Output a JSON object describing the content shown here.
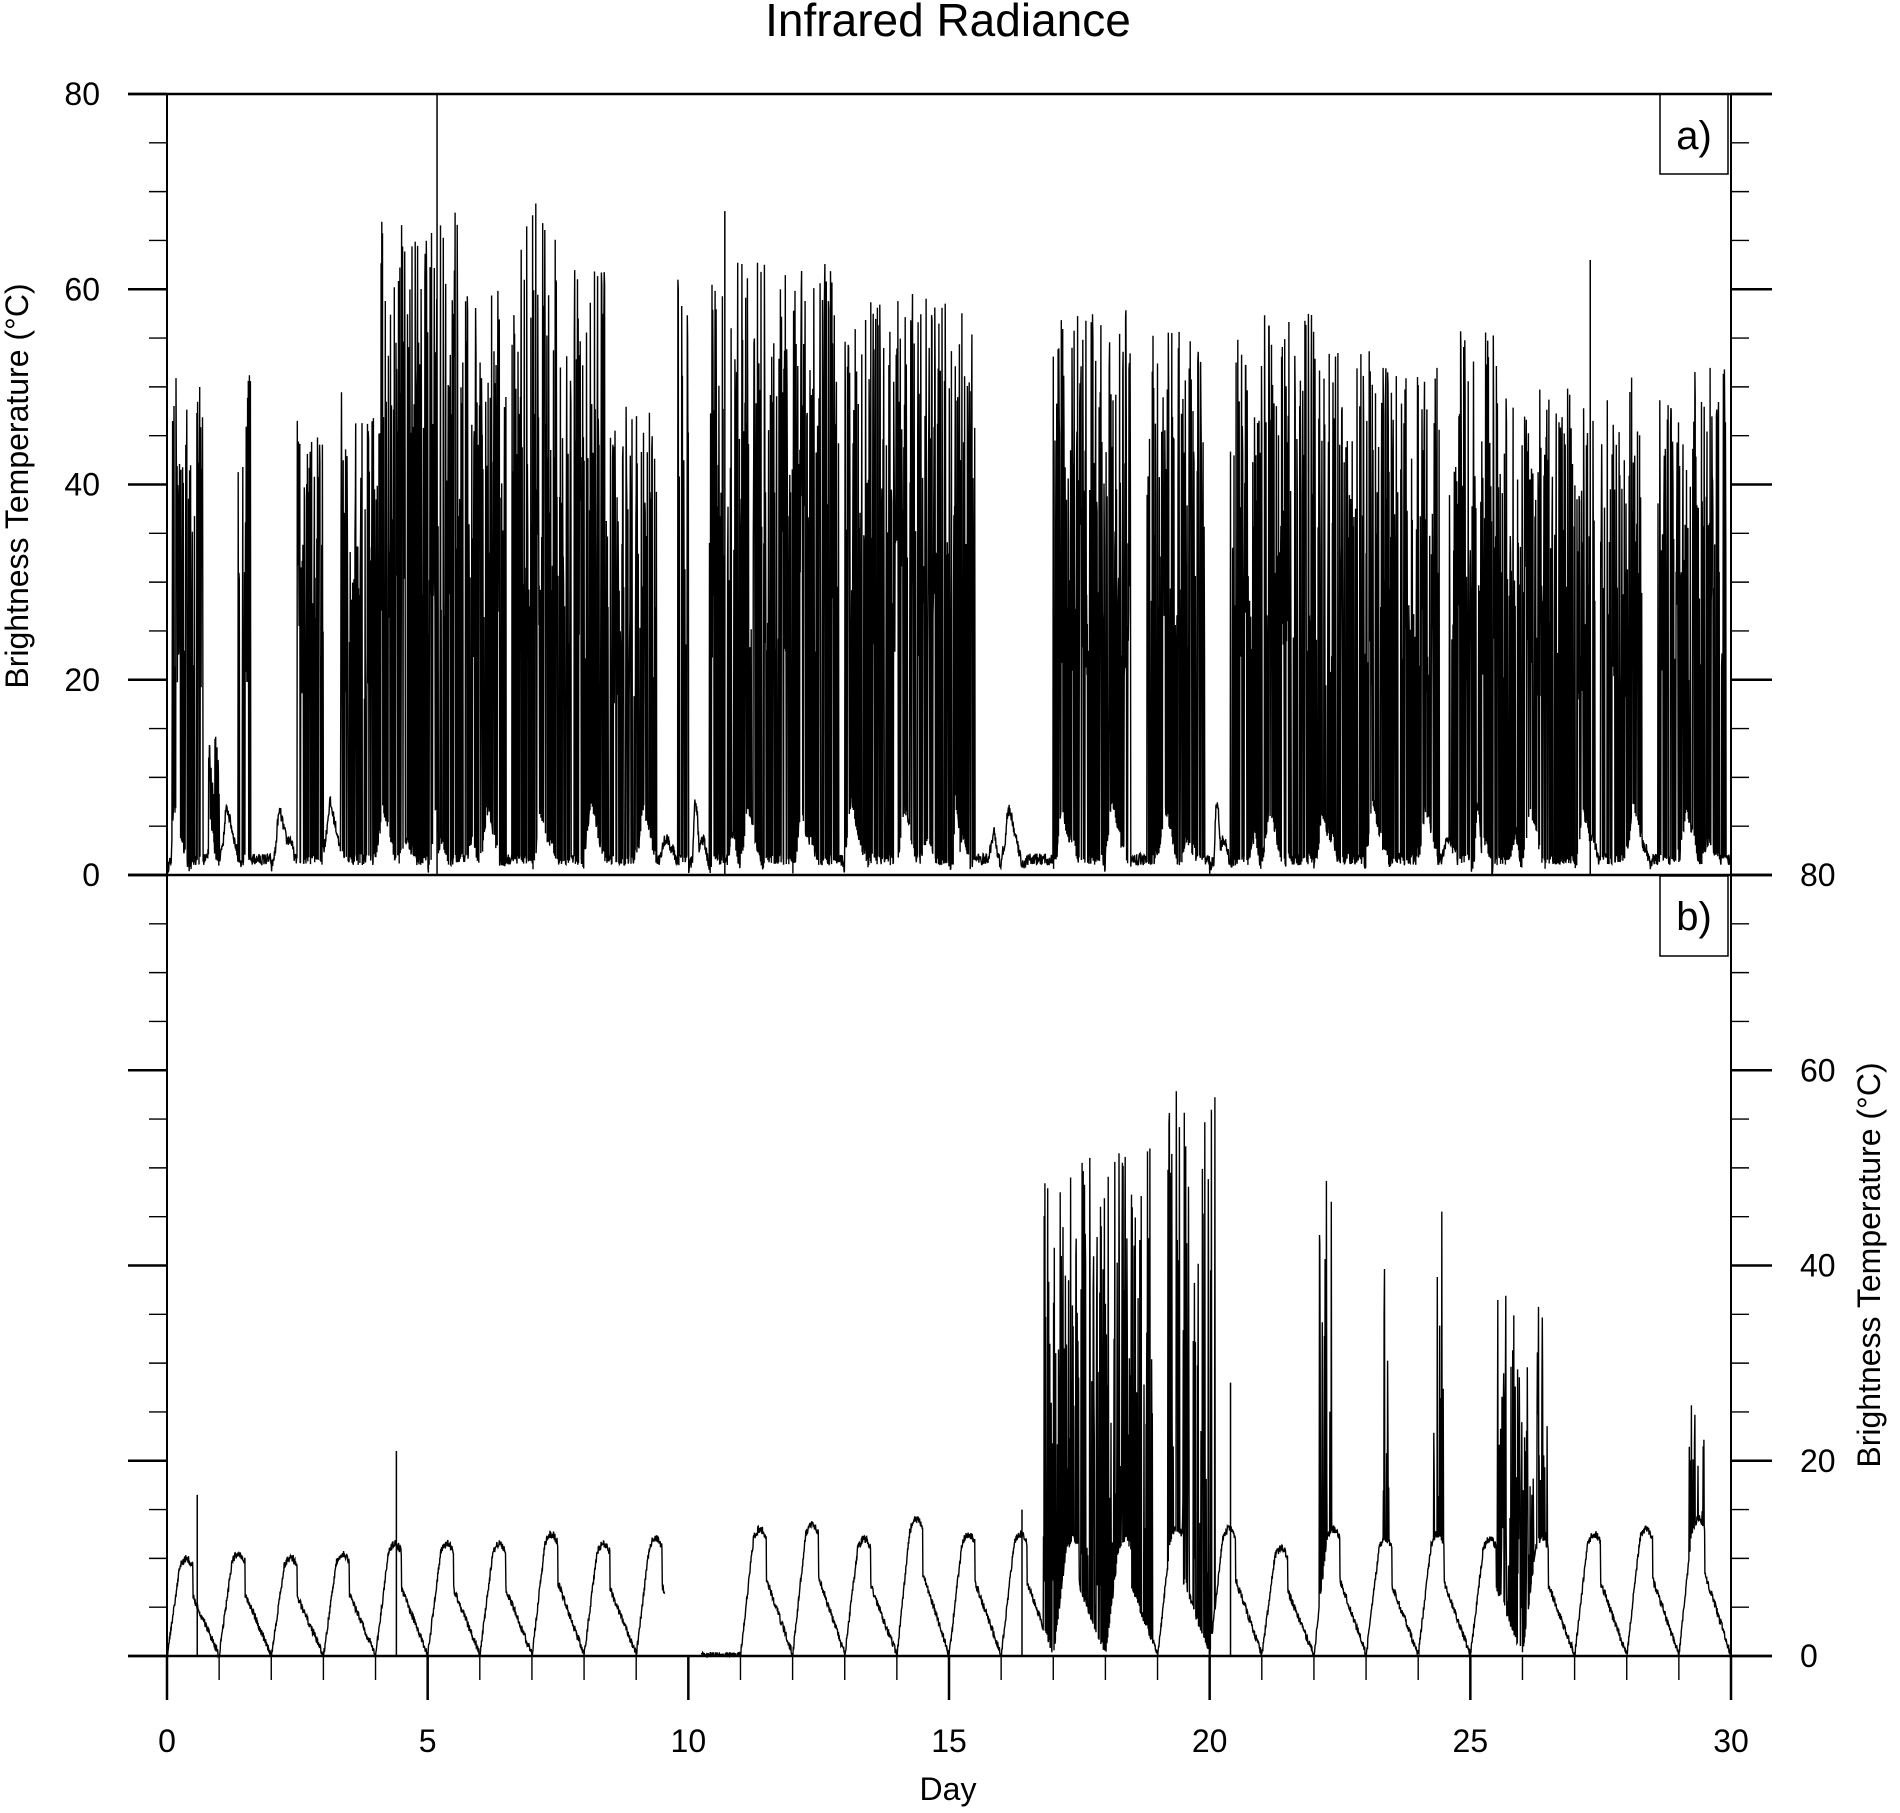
{
  "chart_data": {
    "type": "line",
    "title": "Infrared Radiance",
    "xlabel": "Day",
    "xlim": [
      0,
      30
    ],
    "x_ticks": [
      0,
      5,
      10,
      15,
      20,
      25,
      30
    ],
    "panels": [
      {
        "label": "a)",
        "ylabel": "Brightness Temperature (°C)",
        "ylim": [
          0,
          80
        ],
        "y_ticks": [
          0,
          20,
          40,
          60,
          80
        ],
        "y_axis_side": "left",
        "series": [
          {
            "pattern": "spiky",
            "baseline_daily": [
              [
                0,
                0.5,
                1,
                7,
                6,
                2,
                3,
                3,
                2,
                1,
                0,
                0.5,
                1,
                1,
                1,
                1,
                1,
                1,
                1,
                2,
                3,
                4,
                2,
                1
              ],
              [
                1,
                2,
                3,
                6,
                6,
                5,
                4,
                3,
                2,
                1,
                0.5,
                0.5,
                1,
                1,
                1,
                1,
                1,
                1,
                1,
                1,
                1,
                1,
                1,
                1
              ],
              [
                0,
                1,
                2,
                5,
                6,
                5,
                4,
                3,
                3,
                3,
                2,
                1,
                1,
                1,
                1,
                1,
                1,
                1,
                1,
                1,
                1,
                1,
                1,
                1
              ],
              [
                2,
                3,
                5,
                7,
                6,
                5,
                4,
                3,
                2,
                2,
                1,
                0.5,
                1,
                1,
                1,
                1,
                1,
                1,
                1,
                1,
                1,
                1,
                1,
                1
              ],
              [
                1,
                2,
                4,
                6,
                6,
                5,
                4,
                3,
                2,
                1,
                1,
                1,
                2,
                3,
                3,
                3,
                2,
                2,
                1,
                1,
                1,
                1,
                1,
                1
              ]
            ],
            "bursts": [
              {
                "start": 0.1,
                "end": 0.7,
                "peak": 51
              },
              {
                "start": 0.8,
                "end": 1.0,
                "peak": 15
              },
              {
                "start": 1.35,
                "end": 1.6,
                "peak": 52
              },
              {
                "start": 2.5,
                "end": 3.0,
                "peak": 47
              },
              {
                "start": 3.3,
                "end": 4.1,
                "peak": 50
              },
              {
                "start": 4.1,
                "end": 5.6,
                "peak": 68
              },
              {
                "start": 5.6,
                "end": 6.5,
                "peak": 60
              },
              {
                "start": 6.6,
                "end": 7.5,
                "peak": 69
              },
              {
                "start": 7.5,
                "end": 8.4,
                "peak": 62
              },
              {
                "start": 8.4,
                "end": 9.4,
                "peak": 48
              },
              {
                "start": 9.8,
                "end": 10.0,
                "peak": 61
              },
              {
                "start": 10.4,
                "end": 12.9,
                "peak": 63
              },
              {
                "start": 13.0,
                "end": 14.0,
                "peak": 59
              },
              {
                "start": 14.0,
                "end": 15.5,
                "peak": 60
              },
              {
                "start": 17.0,
                "end": 18.5,
                "peak": 58
              },
              {
                "start": 18.8,
                "end": 19.9,
                "peak": 56
              },
              {
                "start": 20.4,
                "end": 22.0,
                "peak": 58
              },
              {
                "start": 22.0,
                "end": 23.3,
                "peak": 54
              },
              {
                "start": 23.3,
                "end": 24.4,
                "peak": 52
              },
              {
                "start": 24.6,
                "end": 25.5,
                "peak": 56
              },
              {
                "start": 25.5,
                "end": 27.4,
                "peak": 50
              },
              {
                "start": 27.5,
                "end": 28.3,
                "peak": 51
              },
              {
                "start": 28.6,
                "end": 29.9,
                "peak": 52
              }
            ],
            "isolated_spikes": [
              [
                5.18,
                80
              ],
              [
                10.7,
                68
              ],
              [
                27.3,
                63
              ]
            ]
          }
        ]
      },
      {
        "label": "b)",
        "ylabel": "Brightness Temperature (°C)",
        "ylim": [
          0,
          80
        ],
        "y_ticks": [
          0,
          20,
          40,
          60,
          80
        ],
        "y_axis_side": "right",
        "series": [
          {
            "pattern": "diurnal",
            "daily_peaks": [
              10,
              10.5,
              10,
              10.5,
              11.5,
              11.5,
              11.5,
              12.5,
              11.5,
              12,
              0,
              13,
              13.5,
              12,
              14,
              12.5,
              12.5,
              12,
              12,
              13,
              13,
              11,
              13,
              12,
              12.5,
              12,
              12,
              12.5,
              13,
              14
            ],
            "missing_ranges": [
              [
                9.55,
                10.25
              ]
            ],
            "noisy_ranges": [
              {
                "start": 16.8,
                "end": 18.9,
                "peak": 48
              },
              {
                "start": 19.2,
                "end": 20.1,
                "peak": 54
              },
              {
                "start": 22.1,
                "end": 22.35,
                "peak": 45
              },
              {
                "start": 23.3,
                "end": 23.45,
                "peak": 38
              },
              {
                "start": 24.3,
                "end": 24.5,
                "peak": 42
              },
              {
                "start": 25.5,
                "end": 26.5,
                "peak": 33
              },
              {
                "start": 29.2,
                "end": 29.5,
                "peak": 22
              }
            ],
            "isolated_spikes": [
              [
                0.58,
                16.5
              ],
              [
                4.4,
                21
              ],
              [
                16.4,
                15
              ],
              [
                20.4,
                28
              ]
            ]
          }
        ]
      }
    ]
  }
}
